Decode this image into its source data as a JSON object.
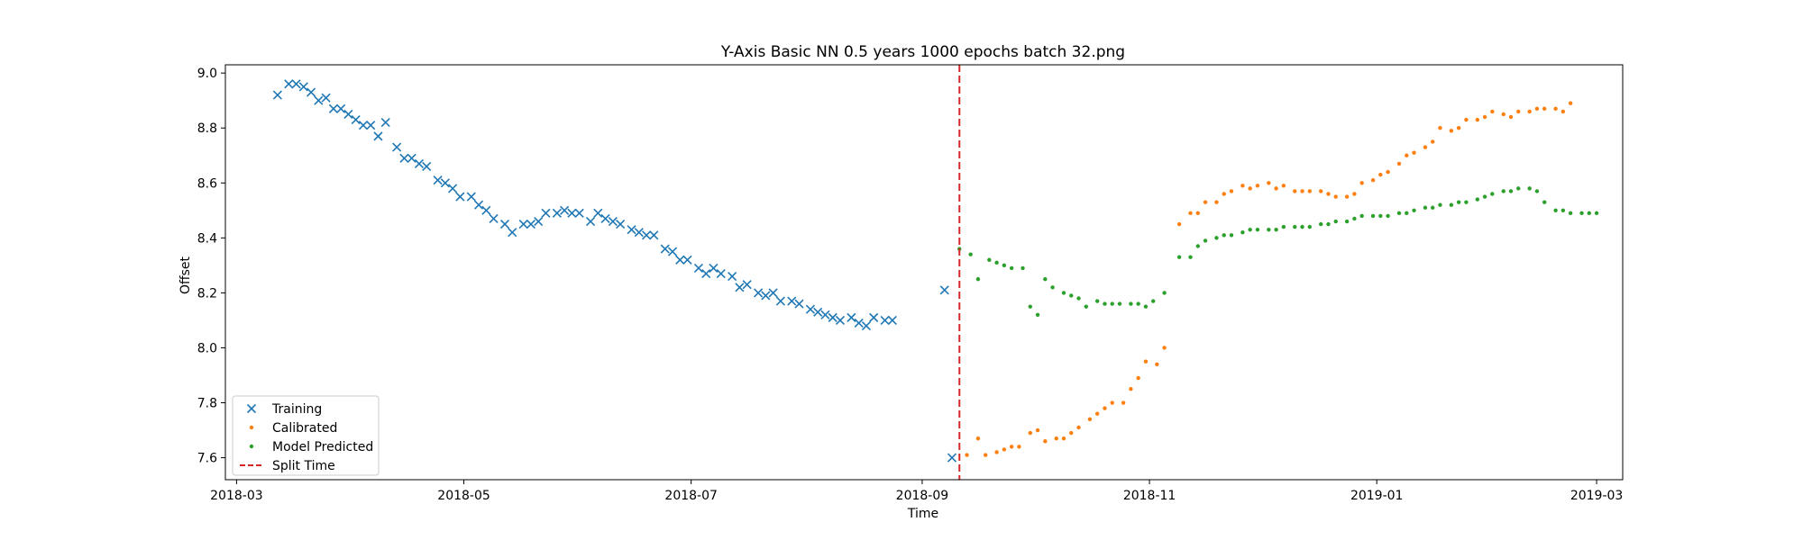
{
  "chart_data": {
    "type": "scatter",
    "title": "Y-Axis Basic NN 0.5 years 1000 epochs batch 32.png",
    "xlabel": "Time",
    "ylabel": "Offset",
    "x_type": "date",
    "xlim": [
      "2018-02-26",
      "2019-03-08"
    ],
    "ylim": [
      7.52,
      9.03
    ],
    "x_ticks": [
      "2018-03-01",
      "2018-05-01",
      "2018-07-01",
      "2018-09-01",
      "2018-11-01",
      "2019-01-01",
      "2019-03-01"
    ],
    "x_tick_labels": [
      "2018-03",
      "2018-05",
      "2018-07",
      "2018-09",
      "2018-11",
      "2019-01",
      "2019-03"
    ],
    "y_ticks": [
      7.6,
      7.8,
      8.0,
      8.2,
      8.4,
      8.6,
      8.8,
      9.0
    ],
    "y_tick_labels": [
      "7.6",
      "7.8",
      "8.0",
      "8.2",
      "8.4",
      "8.6",
      "8.8",
      "9.0"
    ],
    "grid": false,
    "legend_position": "lower-left",
    "split_time": "2018-09-11",
    "series": [
      {
        "name": "Training",
        "marker": "x",
        "color": "#1f77b4",
        "points": [
          [
            "2018-03-12",
            8.92
          ],
          [
            "2018-03-15",
            8.96
          ],
          [
            "2018-03-17",
            8.96
          ],
          [
            "2018-03-19",
            8.95
          ],
          [
            "2018-03-21",
            8.93
          ],
          [
            "2018-03-23",
            8.9
          ],
          [
            "2018-03-25",
            8.91
          ],
          [
            "2018-03-27",
            8.87
          ],
          [
            "2018-03-29",
            8.87
          ],
          [
            "2018-03-31",
            8.85
          ],
          [
            "2018-04-02",
            8.83
          ],
          [
            "2018-04-04",
            8.81
          ],
          [
            "2018-04-06",
            8.81
          ],
          [
            "2018-04-08",
            8.77
          ],
          [
            "2018-04-10",
            8.82
          ],
          [
            "2018-04-13",
            8.73
          ],
          [
            "2018-04-15",
            8.69
          ],
          [
            "2018-04-17",
            8.69
          ],
          [
            "2018-04-19",
            8.67
          ],
          [
            "2018-04-21",
            8.66
          ],
          [
            "2018-04-24",
            8.61
          ],
          [
            "2018-04-26",
            8.6
          ],
          [
            "2018-04-28",
            8.58
          ],
          [
            "2018-04-30",
            8.55
          ],
          [
            "2018-05-03",
            8.55
          ],
          [
            "2018-05-05",
            8.52
          ],
          [
            "2018-05-07",
            8.5
          ],
          [
            "2018-05-09",
            8.47
          ],
          [
            "2018-05-12",
            8.45
          ],
          [
            "2018-05-14",
            8.42
          ],
          [
            "2018-05-17",
            8.45
          ],
          [
            "2018-05-19",
            8.45
          ],
          [
            "2018-05-21",
            8.46
          ],
          [
            "2018-05-23",
            8.49
          ],
          [
            "2018-05-26",
            8.49
          ],
          [
            "2018-05-28",
            8.5
          ],
          [
            "2018-05-30",
            8.49
          ],
          [
            "2018-06-01",
            8.49
          ],
          [
            "2018-06-04",
            8.46
          ],
          [
            "2018-06-06",
            8.49
          ],
          [
            "2018-06-08",
            8.47
          ],
          [
            "2018-06-10",
            8.46
          ],
          [
            "2018-06-12",
            8.45
          ],
          [
            "2018-06-15",
            8.43
          ],
          [
            "2018-06-17",
            8.42
          ],
          [
            "2018-06-19",
            8.41
          ],
          [
            "2018-06-21",
            8.41
          ],
          [
            "2018-06-24",
            8.36
          ],
          [
            "2018-06-26",
            8.35
          ],
          [
            "2018-06-28",
            8.32
          ],
          [
            "2018-06-30",
            8.32
          ],
          [
            "2018-07-03",
            8.29
          ],
          [
            "2018-07-05",
            8.27
          ],
          [
            "2018-07-07",
            8.29
          ],
          [
            "2018-07-09",
            8.27
          ],
          [
            "2018-07-12",
            8.26
          ],
          [
            "2018-07-14",
            8.22
          ],
          [
            "2018-07-16",
            8.23
          ],
          [
            "2018-07-19",
            8.2
          ],
          [
            "2018-07-21",
            8.19
          ],
          [
            "2018-07-23",
            8.2
          ],
          [
            "2018-07-25",
            8.17
          ],
          [
            "2018-07-28",
            8.17
          ],
          [
            "2018-07-30",
            8.16
          ],
          [
            "2018-08-02",
            8.14
          ],
          [
            "2018-08-04",
            8.13
          ],
          [
            "2018-08-06",
            8.12
          ],
          [
            "2018-08-08",
            8.11
          ],
          [
            "2018-08-10",
            8.1
          ],
          [
            "2018-08-13",
            8.11
          ],
          [
            "2018-08-15",
            8.09
          ],
          [
            "2018-08-17",
            8.08
          ],
          [
            "2018-08-19",
            8.11
          ],
          [
            "2018-08-22",
            8.1
          ],
          [
            "2018-08-24",
            8.1
          ],
          [
            "2018-09-07",
            8.21
          ],
          [
            "2018-09-09",
            7.6
          ]
        ]
      },
      {
        "name": "Calibrated",
        "marker": "dot",
        "color": "#ff7f0e",
        "points": [
          [
            "2018-09-13",
            7.61
          ],
          [
            "2018-09-16",
            7.67
          ],
          [
            "2018-09-18",
            7.61
          ],
          [
            "2018-09-21",
            7.62
          ],
          [
            "2018-09-23",
            7.63
          ],
          [
            "2018-09-25",
            7.64
          ],
          [
            "2018-09-27",
            7.64
          ],
          [
            "2018-09-30",
            7.69
          ],
          [
            "2018-10-02",
            7.7
          ],
          [
            "2018-10-04",
            7.66
          ],
          [
            "2018-10-07",
            7.67
          ],
          [
            "2018-10-09",
            7.67
          ],
          [
            "2018-10-11",
            7.69
          ],
          [
            "2018-10-13",
            7.71
          ],
          [
            "2018-10-16",
            7.74
          ],
          [
            "2018-10-18",
            7.76
          ],
          [
            "2018-10-20",
            7.78
          ],
          [
            "2018-10-22",
            7.8
          ],
          [
            "2018-10-25",
            7.8
          ],
          [
            "2018-10-27",
            7.85
          ],
          [
            "2018-10-29",
            7.89
          ],
          [
            "2018-10-31",
            7.95
          ],
          [
            "2018-11-03",
            7.94
          ],
          [
            "2018-11-05",
            8.0
          ],
          [
            "2018-11-09",
            8.45
          ],
          [
            "2018-11-12",
            8.49
          ],
          [
            "2018-11-14",
            8.49
          ],
          [
            "2018-11-16",
            8.53
          ],
          [
            "2018-11-19",
            8.53
          ],
          [
            "2018-11-21",
            8.56
          ],
          [
            "2018-11-23",
            8.57
          ],
          [
            "2018-11-26",
            8.59
          ],
          [
            "2018-11-28",
            8.58
          ],
          [
            "2018-11-30",
            8.59
          ],
          [
            "2018-12-03",
            8.6
          ],
          [
            "2018-12-05",
            8.58
          ],
          [
            "2018-12-07",
            8.59
          ],
          [
            "2018-12-10",
            8.57
          ],
          [
            "2018-12-12",
            8.57
          ],
          [
            "2018-12-14",
            8.57
          ],
          [
            "2018-12-17",
            8.57
          ],
          [
            "2018-12-19",
            8.56
          ],
          [
            "2018-12-21",
            8.55
          ],
          [
            "2018-12-24",
            8.55
          ],
          [
            "2018-12-26",
            8.56
          ],
          [
            "2018-12-28",
            8.6
          ],
          [
            "2018-12-31",
            8.61
          ],
          [
            "2019-01-02",
            8.63
          ],
          [
            "2019-01-04",
            8.64
          ],
          [
            "2019-01-07",
            8.67
          ],
          [
            "2019-01-09",
            8.7
          ],
          [
            "2019-01-11",
            8.71
          ],
          [
            "2019-01-14",
            8.73
          ],
          [
            "2019-01-16",
            8.75
          ],
          [
            "2019-01-18",
            8.8
          ],
          [
            "2019-01-21",
            8.79
          ],
          [
            "2019-01-23",
            8.8
          ],
          [
            "2019-01-25",
            8.83
          ],
          [
            "2019-01-28",
            8.83
          ],
          [
            "2019-01-30",
            8.84
          ],
          [
            "2019-02-01",
            8.86
          ],
          [
            "2019-02-04",
            8.85
          ],
          [
            "2019-02-06",
            8.84
          ],
          [
            "2019-02-08",
            8.86
          ],
          [
            "2019-02-11",
            8.86
          ],
          [
            "2019-02-13",
            8.87
          ],
          [
            "2019-02-15",
            8.87
          ],
          [
            "2019-02-18",
            8.87
          ],
          [
            "2019-02-20",
            8.86
          ],
          [
            "2019-02-22",
            8.89
          ]
        ]
      },
      {
        "name": "Model Predicted",
        "marker": "dot",
        "color": "#2ca02c",
        "points": [
          [
            "2018-09-11",
            8.36
          ],
          [
            "2018-09-14",
            8.34
          ],
          [
            "2018-09-16",
            8.25
          ],
          [
            "2018-09-19",
            8.32
          ],
          [
            "2018-09-21",
            8.31
          ],
          [
            "2018-09-23",
            8.3
          ],
          [
            "2018-09-25",
            8.29
          ],
          [
            "2018-09-28",
            8.29
          ],
          [
            "2018-09-30",
            8.15
          ],
          [
            "2018-10-02",
            8.12
          ],
          [
            "2018-10-04",
            8.25
          ],
          [
            "2018-10-06",
            8.22
          ],
          [
            "2018-10-09",
            8.2
          ],
          [
            "2018-10-11",
            8.19
          ],
          [
            "2018-10-13",
            8.18
          ],
          [
            "2018-10-15",
            8.15
          ],
          [
            "2018-10-18",
            8.17
          ],
          [
            "2018-10-20",
            8.16
          ],
          [
            "2018-10-22",
            8.16
          ],
          [
            "2018-10-24",
            8.16
          ],
          [
            "2018-10-27",
            8.16
          ],
          [
            "2018-10-29",
            8.16
          ],
          [
            "2018-10-31",
            8.15
          ],
          [
            "2018-11-02",
            8.17
          ],
          [
            "2018-11-05",
            8.2
          ],
          [
            "2018-11-09",
            8.33
          ],
          [
            "2018-11-12",
            8.33
          ],
          [
            "2018-11-14",
            8.37
          ],
          [
            "2018-11-16",
            8.39
          ],
          [
            "2018-11-19",
            8.4
          ],
          [
            "2018-11-21",
            8.41
          ],
          [
            "2018-11-23",
            8.41
          ],
          [
            "2018-11-26",
            8.42
          ],
          [
            "2018-11-28",
            8.43
          ],
          [
            "2018-11-30",
            8.43
          ],
          [
            "2018-12-03",
            8.43
          ],
          [
            "2018-12-05",
            8.43
          ],
          [
            "2018-12-07",
            8.44
          ],
          [
            "2018-12-10",
            8.44
          ],
          [
            "2018-12-12",
            8.44
          ],
          [
            "2018-12-14",
            8.44
          ],
          [
            "2018-12-17",
            8.45
          ],
          [
            "2018-12-19",
            8.45
          ],
          [
            "2018-12-21",
            8.46
          ],
          [
            "2018-12-24",
            8.46
          ],
          [
            "2018-12-26",
            8.47
          ],
          [
            "2018-12-28",
            8.48
          ],
          [
            "2018-12-31",
            8.48
          ],
          [
            "2019-01-02",
            8.48
          ],
          [
            "2019-01-04",
            8.48
          ],
          [
            "2019-01-07",
            8.49
          ],
          [
            "2019-01-09",
            8.49
          ],
          [
            "2019-01-11",
            8.5
          ],
          [
            "2019-01-14",
            8.51
          ],
          [
            "2019-01-16",
            8.51
          ],
          [
            "2019-01-18",
            8.52
          ],
          [
            "2019-01-21",
            8.52
          ],
          [
            "2019-01-23",
            8.53
          ],
          [
            "2019-01-25",
            8.53
          ],
          [
            "2019-01-28",
            8.54
          ],
          [
            "2019-01-30",
            8.55
          ],
          [
            "2019-02-01",
            8.56
          ],
          [
            "2019-02-04",
            8.57
          ],
          [
            "2019-02-06",
            8.57
          ],
          [
            "2019-02-08",
            8.58
          ],
          [
            "2019-02-11",
            8.58
          ],
          [
            "2019-02-13",
            8.57
          ],
          [
            "2019-02-15",
            8.53
          ],
          [
            "2019-02-18",
            8.5
          ],
          [
            "2019-02-20",
            8.5
          ],
          [
            "2019-02-22",
            8.49
          ],
          [
            "2019-02-25",
            8.49
          ],
          [
            "2019-02-27",
            8.49
          ],
          [
            "2019-03-01",
            8.49
          ]
        ]
      },
      {
        "name": "Split Time",
        "marker": "dashed-line",
        "color": "#d62728"
      }
    ]
  }
}
